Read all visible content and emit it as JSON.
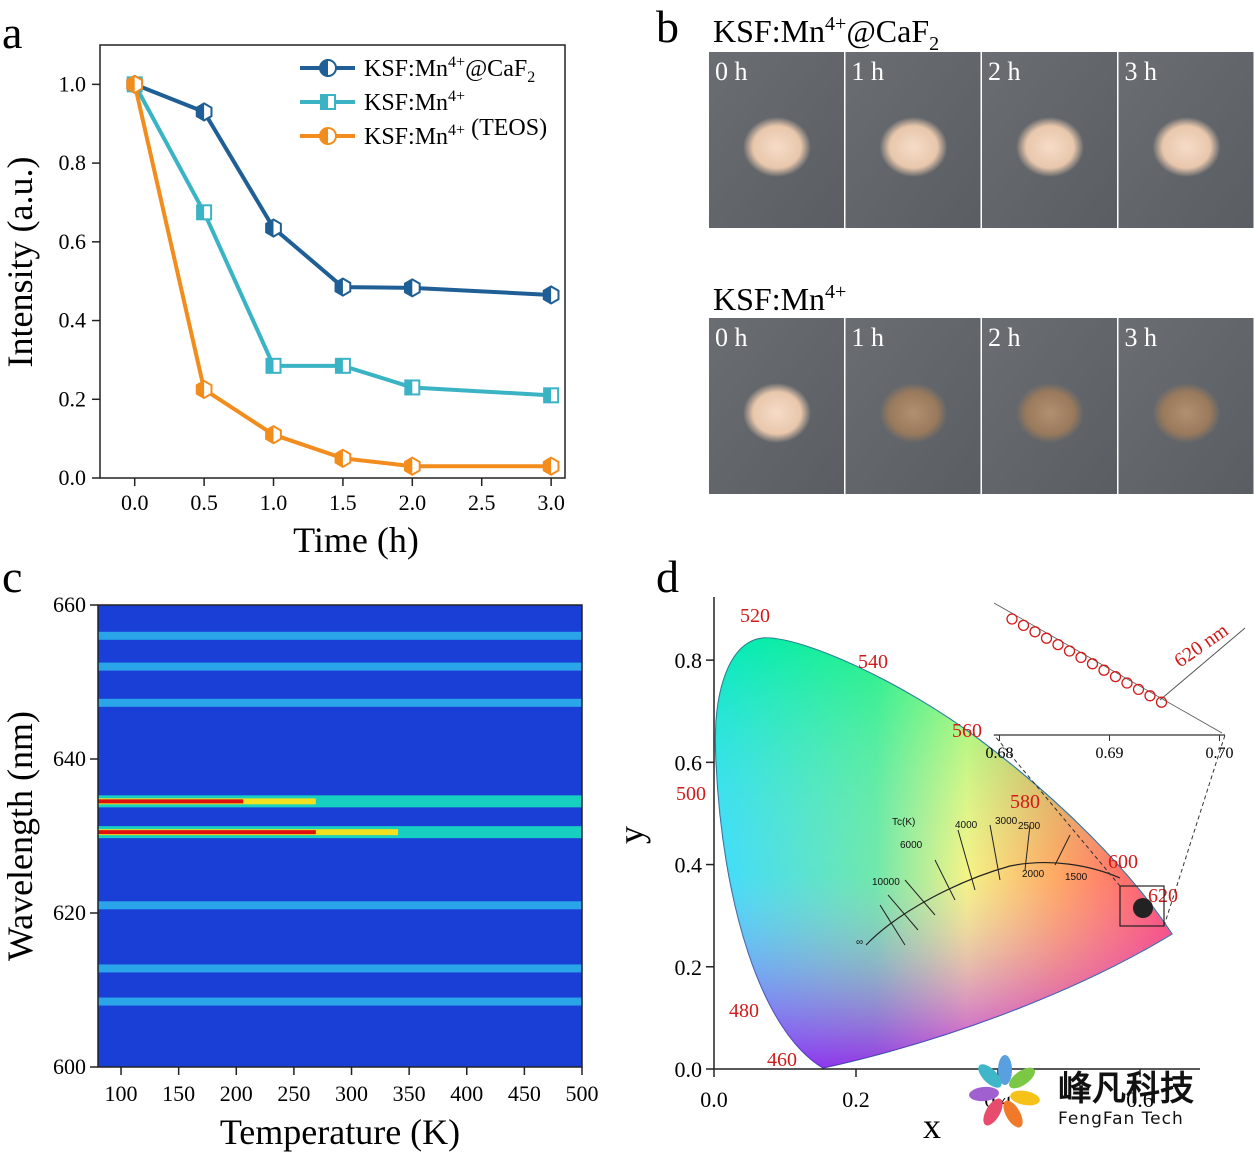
{
  "chart_data": [
    {
      "panel": "a",
      "type": "line",
      "xlabel": "Time (h)",
      "ylabel": "Intensity (a.u.)",
      "xlim": [
        -0.25,
        3.1
      ],
      "ylim": [
        0.0,
        1.1
      ],
      "xticks": [
        "0.0",
        "0.5",
        "1.0",
        "1.5",
        "2.0",
        "2.5",
        "3.0"
      ],
      "yticks": [
        "0.0",
        "0.2",
        "0.4",
        "0.6",
        "0.8",
        "1.0"
      ],
      "x": [
        0.0,
        0.5,
        1.0,
        1.5,
        2.0,
        3.0
      ],
      "legend_position": "top-right",
      "series": [
        {
          "name": "KSF:Mn4+@CaF2",
          "color": "#1f5f95",
          "values": [
            1.0,
            0.93,
            0.635,
            0.485,
            0.483,
            0.465
          ]
        },
        {
          "name": "KSF:Mn4+",
          "color": "#3ab3c4",
          "values": [
            1.0,
            0.675,
            0.285,
            0.285,
            0.23,
            0.21
          ]
        },
        {
          "name": "KSF:Mn4+ (TEOS)",
          "color": "#f28c1c",
          "values": [
            1.0,
            0.225,
            0.11,
            0.05,
            0.03,
            0.03
          ]
        }
      ]
    },
    {
      "panel": "c",
      "type": "heatmap",
      "xlabel": "Temperature (K)",
      "ylabel": "Wavelength (nm)",
      "xlim": [
        80,
        500
      ],
      "ylim": [
        600,
        660
      ],
      "xticks": [
        "100",
        "150",
        "200",
        "250",
        "300",
        "350",
        "400",
        "450",
        "500"
      ],
      "yticks": [
        "600",
        "620",
        "640",
        "660"
      ],
      "bands_nm": [
        608.5,
        612.8,
        621,
        630.5,
        634.5,
        647.3,
        652,
        656
      ]
    },
    {
      "panel": "d",
      "type": "scatter",
      "xlabel": "x",
      "ylabel": "y",
      "xlim": [
        0.0,
        0.8
      ],
      "ylim": [
        0.0,
        0.9
      ],
      "xticks": [
        "0.0",
        "0.2",
        "0.4",
        "0.6",
        "0.8"
      ],
      "yticks": [
        "0.0",
        "0.2",
        "0.4",
        "0.6",
        "0.8"
      ],
      "wavelength_labels": [
        "460",
        "480",
        "500",
        "520",
        "540",
        "560",
        "580",
        "600",
        "620"
      ],
      "cct_labels": [
        "Tc(K)",
        "10000",
        "6000",
        "4000",
        "3000",
        "2500",
        "2000",
        "1500",
        "∞"
      ],
      "inset_xticks": [
        "0.68",
        "0.69",
        "0.70"
      ],
      "inset_label": "620 nm",
      "points_x": [
        0.6916,
        0.6917,
        0.6918,
        0.6919,
        0.692,
        0.6921,
        0.6922,
        0.6923,
        0.6924,
        0.6925,
        0.6926,
        0.6927,
        0.6928,
        0.6929
      ]
    }
  ],
  "panels": {
    "a": {
      "letter": "a"
    },
    "b": {
      "letter": "b",
      "groups": [
        {
          "title_main": "KSF:Mn",
          "title_sup": "4+",
          "title_rest": "@CaF",
          "title_sub": "2",
          "times": [
            "0 h",
            "1 h",
            "2 h",
            "3 h"
          ]
        },
        {
          "title_main": "KSF:Mn",
          "title_sup": "4+",
          "title_rest": "",
          "title_sub": "",
          "times": [
            "0 h",
            "1 h",
            "2 h",
            "3 h"
          ]
        }
      ]
    },
    "c": {
      "letter": "c"
    },
    "d": {
      "letter": "d"
    }
  },
  "legend": [
    {
      "main": "KSF:Mn",
      "sup": "4+",
      "rest": "@CaF",
      "sub": "2",
      "tail": ""
    },
    {
      "main": "KSF:Mn",
      "sup": "4+",
      "rest": "",
      "sub": "",
      "tail": ""
    },
    {
      "main": "KSF:Mn",
      "sup": "4+",
      "rest": "",
      "sub": "",
      "tail": " (TEOS)"
    }
  ],
  "watermark": {
    "cn": "峰凡科技",
    "en": "FengFan Tech"
  }
}
